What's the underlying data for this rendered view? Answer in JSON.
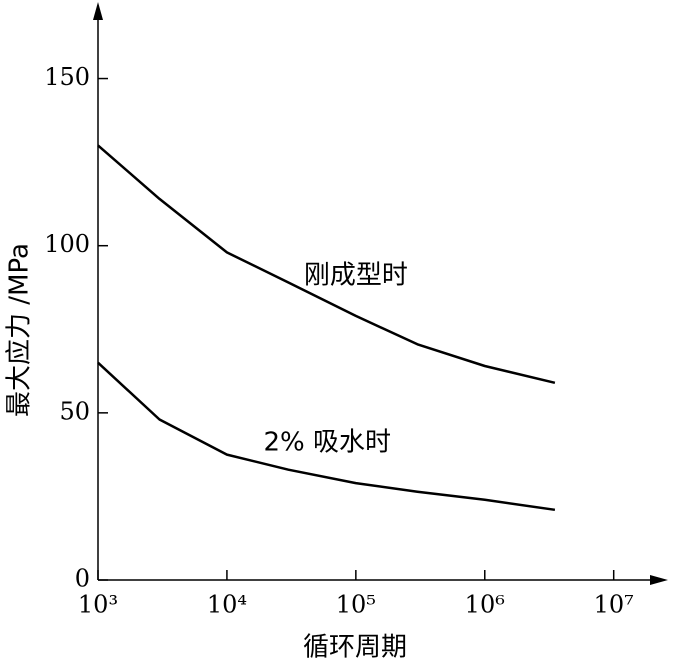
{
  "chart_data": {
    "type": "line",
    "xlabel": "循环周期",
    "ylabel": "最大应力 /MPa",
    "x": [
      1000,
      3000,
      10000,
      30000,
      100000,
      300000,
      1000000,
      3500000
    ],
    "series": [
      {
        "name": "刚成型时",
        "color": "#000000",
        "values": [
          130,
          114,
          98,
          89,
          79,
          70.5,
          64,
          59
        ]
      },
      {
        "name": "2% 吸水时",
        "color": "#000000",
        "values": [
          65,
          48,
          37.5,
          33,
          29,
          26.4,
          24,
          21
        ]
      }
    ],
    "xscale": "log",
    "xlim": [
      1000,
      25000000
    ],
    "ylim": [
      0,
      172
    ],
    "xticks": [
      {
        "value": 1000,
        "label": "10³"
      },
      {
        "value": 10000,
        "label": "10⁴"
      },
      {
        "value": 100000,
        "label": "10⁵"
      },
      {
        "value": 1000000,
        "label": "10⁶"
      },
      {
        "value": 10000000,
        "label": "10⁷"
      }
    ],
    "yticks": [
      0,
      50,
      100,
      150
    ],
    "annotations": [
      {
        "text": "刚成型时",
        "x": 100000,
        "y": 91
      },
      {
        "text": "2% 吸水时",
        "x": 60000,
        "y": 41
      }
    ]
  }
}
